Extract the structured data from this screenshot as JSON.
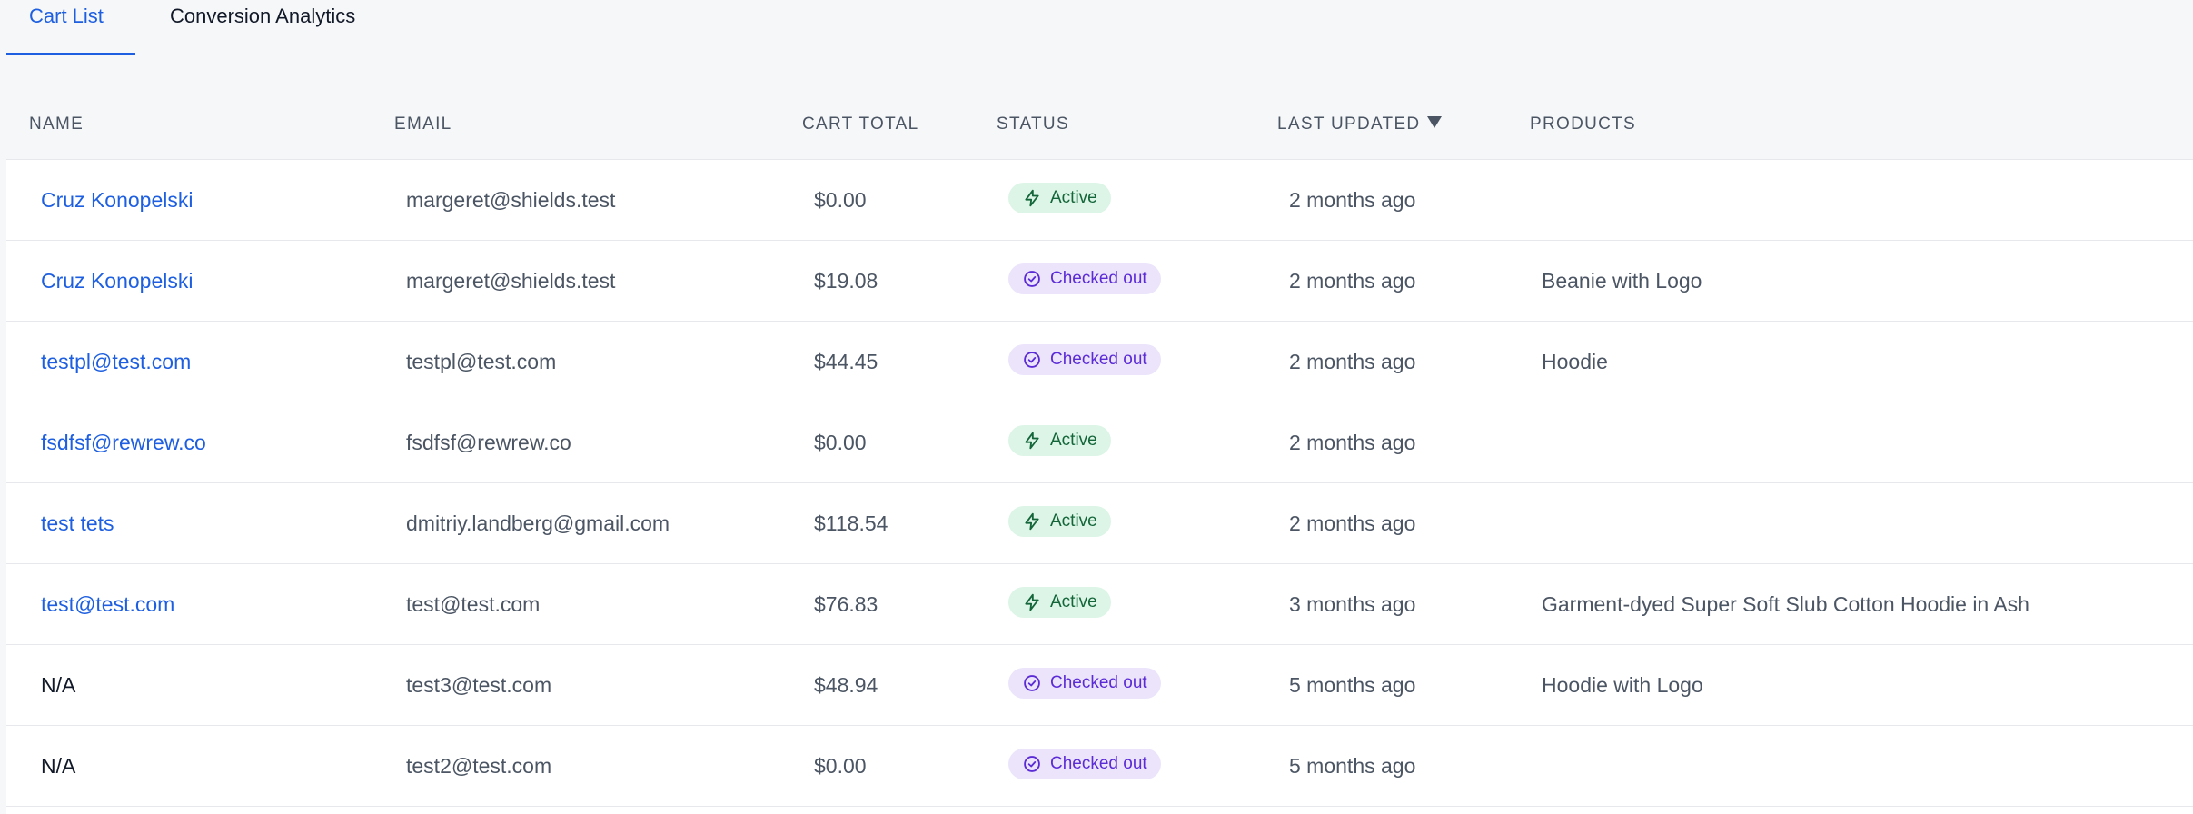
{
  "tabs": [
    {
      "label": "Cart List",
      "active": true
    },
    {
      "label": "Conversion Analytics",
      "active": false
    }
  ],
  "table": {
    "headers": {
      "name": "NAME",
      "email": "EMAIL",
      "cart_total": "CART TOTAL",
      "status": "STATUS",
      "last_updated": "LAST UPDATED",
      "products": "PRODUCTS"
    },
    "sort_icon": "caret-down-icon",
    "rows": [
      {
        "name": "Cruz Konopelski",
        "email": "margeret@shields.test",
        "total": "$0.00",
        "status": "Active",
        "updated": "2 months ago",
        "products": ""
      },
      {
        "name": "Cruz Konopelski",
        "email": "margeret@shields.test",
        "total": "$19.08",
        "status": "Checked out",
        "updated": "2 months ago",
        "products": "Beanie with Logo"
      },
      {
        "name": "testpl@test.com",
        "email": "testpl@test.com",
        "total": "$44.45",
        "status": "Checked out",
        "updated": "2 months ago",
        "products": "Hoodie"
      },
      {
        "name": "fsdfsf@rewrew.co",
        "email": "fsdfsf@rewrew.co",
        "total": "$0.00",
        "status": "Active",
        "updated": "2 months ago",
        "products": ""
      },
      {
        "name": "test tets",
        "email": "dmitriy.landberg@gmail.com",
        "total": "$118.54",
        "status": "Active",
        "updated": "2 months ago",
        "products": ""
      },
      {
        "name": "test@test.com",
        "email": "test@test.com",
        "total": "$76.83",
        "status": "Active",
        "updated": "3 months ago",
        "products": "Garment-dyed Super Soft Slub Cotton Hoodie in Ash"
      },
      {
        "name": "N/A",
        "email": "test3@test.com",
        "total": "$48.94",
        "status": "Checked out",
        "updated": "5 months ago",
        "products": "Hoodie with Logo"
      },
      {
        "name": "N/A",
        "email": "test2@test.com",
        "total": "$0.00",
        "status": "Checked out",
        "updated": "5 months ago",
        "products": ""
      }
    ]
  },
  "status_styles": {
    "Active": {
      "icon": "lightning-bolt-icon",
      "bg": "#dcf5e6",
      "fg": "#14663a"
    },
    "Checked out": {
      "icon": "check-circle-icon",
      "bg": "#ebe4fb",
      "fg": "#5b2bd6"
    }
  },
  "colors": {
    "accent": "#1d5fe0"
  }
}
